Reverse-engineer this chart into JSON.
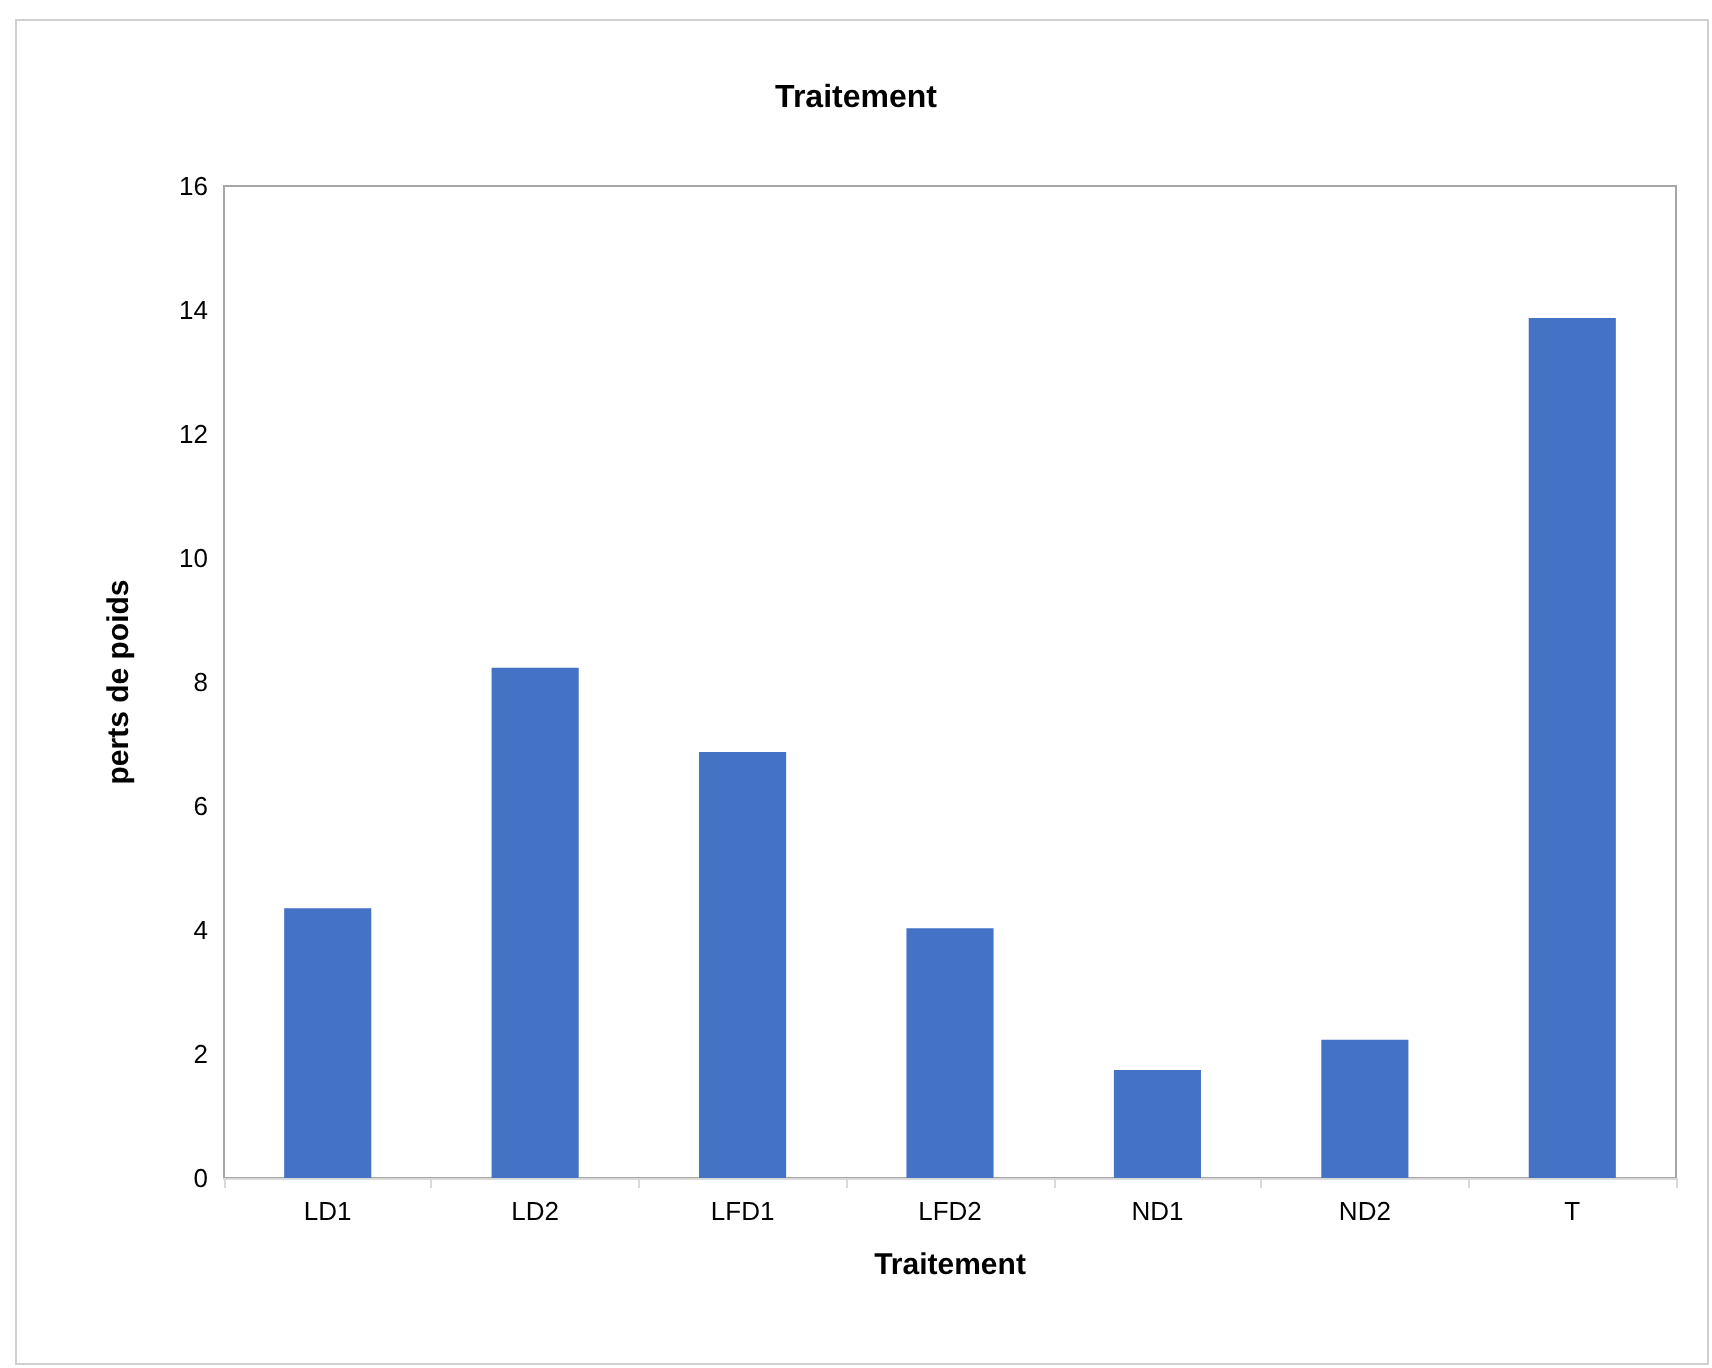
{
  "chart_data": {
    "type": "bar",
    "title": "Traitement",
    "xlabel": "Traitement",
    "ylabel": "perts de poids",
    "categories": [
      "LD1",
      "LD2",
      "LFD1",
      "LFD2",
      "ND1",
      "ND2",
      "T"
    ],
    "values": [
      4.35,
      8.23,
      6.87,
      4.03,
      1.74,
      2.23,
      13.87
    ],
    "color": "#4472c4",
    "ylim": [
      0,
      16
    ],
    "yticks": [
      0,
      2,
      4,
      6,
      8,
      10,
      12,
      14,
      16
    ],
    "grid": false
  }
}
